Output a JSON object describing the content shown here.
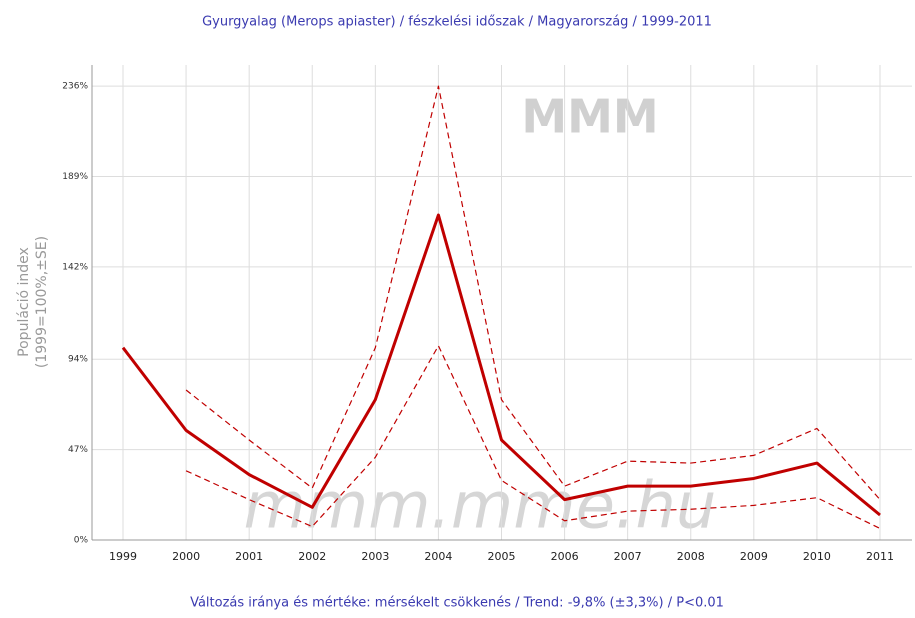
{
  "chart_data": {
    "type": "line",
    "title": "Gyurgyalag (Merops apiaster) / fészkelési időszak / Magyarország / 1999-2011",
    "ylabel": [
      "Populáció index",
      "(1999=100%,±SE)"
    ],
    "annotation": "Változás iránya és mértéke: mérsékelt csökkenés / Trend: -9,8% (±3,3%) / P<0.01",
    "watermarks": [
      "MMM",
      "mmm.mme.hu"
    ],
    "categories": [
      "1999",
      "2000",
      "2001",
      "2002",
      "2003",
      "2004",
      "2005",
      "2006",
      "2007",
      "2008",
      "2009",
      "2010",
      "2011"
    ],
    "series": [
      {
        "color": "#c00000",
        "dashed": false,
        "values": [
          100,
          57,
          34,
          17,
          73,
          169,
          52,
          21,
          28,
          28,
          32,
          40,
          13
        ]
      },
      {
        "color": "#c00000",
        "dashed": true,
        "values": [
          null,
          78,
          52,
          27,
          100,
          236,
          73,
          28,
          41,
          40,
          44,
          58,
          21
        ]
      },
      {
        "color": "#c00000",
        "dashed": true,
        "values": [
          null,
          36,
          21,
          7,
          43,
          101,
          31,
          10,
          15,
          16,
          18,
          22,
          6
        ]
      }
    ],
    "ylim": [
      0,
      247
    ],
    "yticks": [
      {
        "value": 0,
        "label": "0%"
      },
      {
        "value": 47,
        "label": "47%"
      },
      {
        "value": 94,
        "label": "94%"
      },
      {
        "value": 142,
        "label": "142%"
      },
      {
        "value": 189,
        "label": "189%"
      },
      {
        "value": 236,
        "label": "236%"
      }
    ],
    "grid": true
  }
}
